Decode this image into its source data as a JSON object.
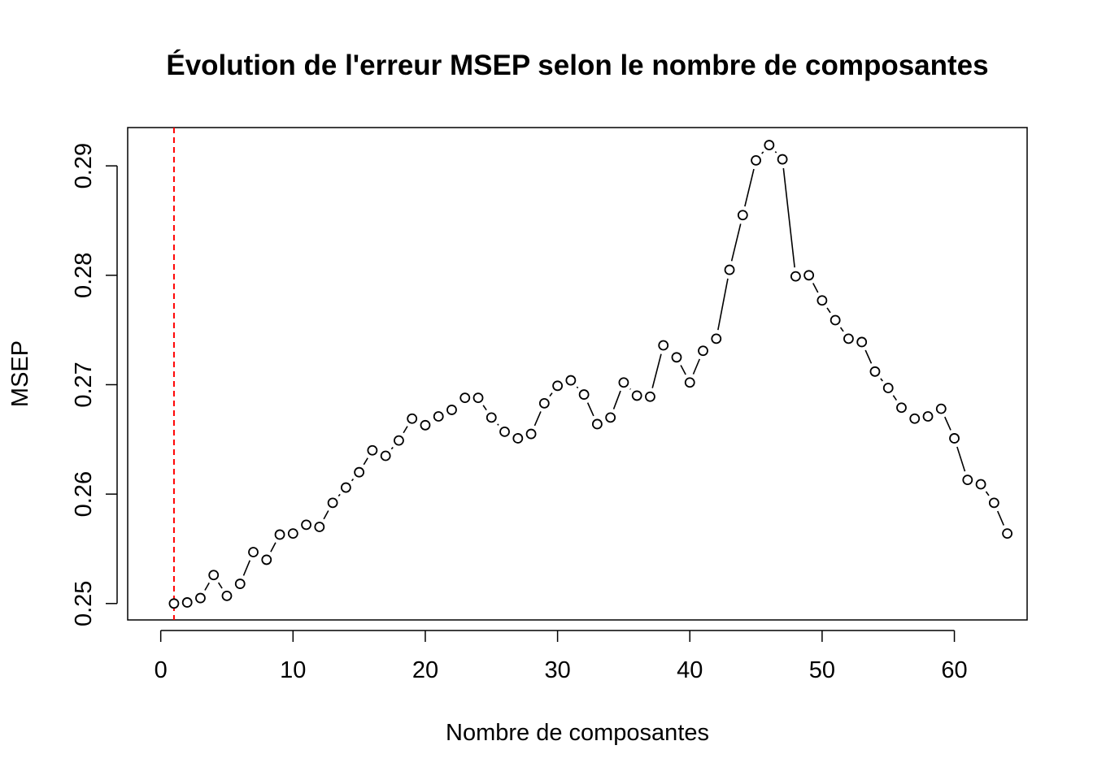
{
  "chart_data": {
    "type": "scatter",
    "title": "Évolution de l'erreur MSEP selon le nombre de composantes",
    "xlabel": "Nombre de composantes",
    "ylabel": "MSEP",
    "xlim": [
      -2.5,
      65.5
    ],
    "ylim": [
      0.2485,
      0.2935
    ],
    "xticks": [
      "0",
      "10",
      "20",
      "30",
      "40",
      "50",
      "60"
    ],
    "yticks": [
      "0.25",
      "0.26",
      "0.27",
      "0.28",
      "0.29"
    ],
    "x": [
      1,
      2,
      3,
      4,
      5,
      6,
      7,
      8,
      9,
      10,
      11,
      12,
      13,
      14,
      15,
      16,
      17,
      18,
      19,
      20,
      21,
      22,
      23,
      24,
      25,
      26,
      27,
      28,
      29,
      30,
      31,
      32,
      33,
      34,
      35,
      36,
      37,
      38,
      39,
      40,
      41,
      42,
      43,
      44,
      45,
      46,
      47,
      48,
      49,
      50,
      51,
      52,
      53,
      54,
      55,
      56,
      57,
      58,
      59,
      60,
      61,
      62,
      63,
      64
    ],
    "y": [
      0.25,
      0.2501,
      0.2505,
      0.2526,
      0.2507,
      0.2518,
      0.2547,
      0.254,
      0.2563,
      0.2564,
      0.2572,
      0.257,
      0.2592,
      0.2606,
      0.262,
      0.264,
      0.2635,
      0.2649,
      0.2669,
      0.2663,
      0.2671,
      0.2677,
      0.2688,
      0.2688,
      0.267,
      0.2657,
      0.2651,
      0.2655,
      0.2683,
      0.2699,
      0.2704,
      0.2691,
      0.2664,
      0.267,
      0.2702,
      0.269,
      0.2689,
      0.2736,
      0.2725,
      0.2702,
      0.2731,
      0.2742,
      0.2805,
      0.2855,
      0.2905,
      0.2919,
      0.2906,
      0.2799,
      0.28,
      0.2777,
      0.2759,
      0.2742,
      0.2739,
      0.2712,
      0.2697,
      0.2679,
      0.2669,
      0.2671,
      0.2678,
      0.2651,
      0.2613,
      0.2609,
      0.2592,
      0.2564
    ],
    "series_style": "points-and-lines",
    "point_color": "#000000",
    "line_color": "#000000",
    "reference_line": {
      "x": 1,
      "color": "#ff0000",
      "style": "dashed"
    },
    "grid": false
  }
}
